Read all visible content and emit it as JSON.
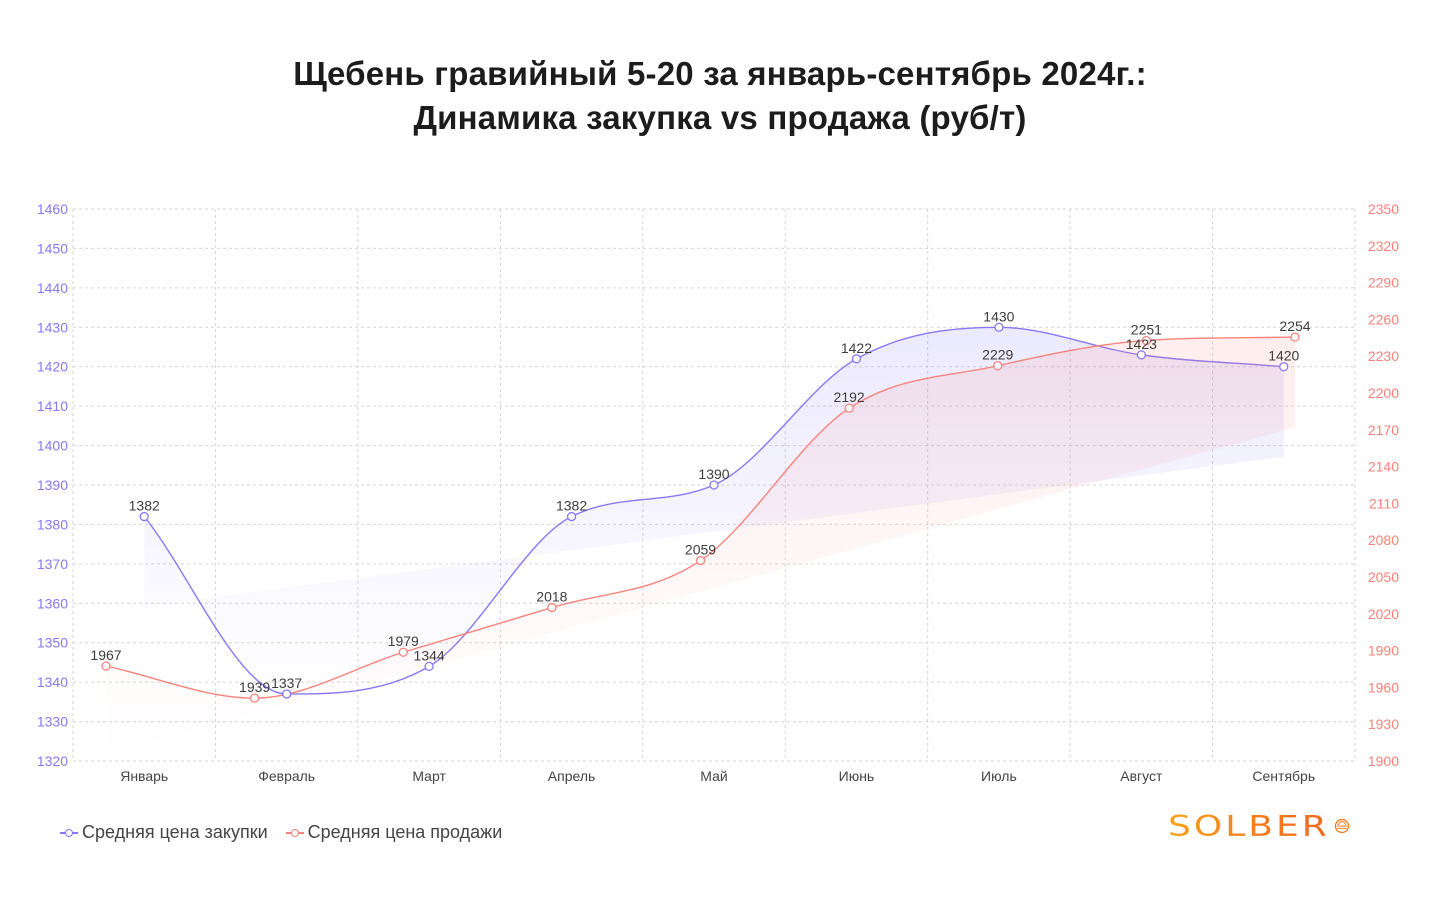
{
  "title": {
    "line1": "Щебень гравийный 5-20 за январь-сентябрь 2024г.:",
    "line2": "Динамика закупка vs продажа (руб/т)"
  },
  "legend": {
    "purchase": "Средняя цена закупки",
    "sale": "Средняя цена продажи"
  },
  "logo": {
    "text": "SOLBER"
  },
  "colors": {
    "purchase": "#8878f6",
    "sale": "#f9837b",
    "grid": "#d6d6d6",
    "left_axis_text": "#8878f6",
    "right_axis_text": "#f9837b",
    "label_text": "#3d3d3d",
    "logo": "#f47a1c"
  },
  "chart_data": {
    "type": "line",
    "title": "Щебень гравийный 5-20 за январь-сентябрь 2024г.: Динамика закупка vs продажа (руб/т)",
    "categories": [
      "Январь",
      "Февраль",
      "Март",
      "Апрель",
      "Май",
      "Июнь",
      "Июль",
      "Август",
      "Сентябрь"
    ],
    "series": [
      {
        "name": "Средняя цена закупки",
        "axis": "left",
        "color": "#8878f6",
        "values": [
          1382,
          1337,
          1344,
          1382,
          1390,
          1422,
          1430,
          1423,
          1420
        ]
      },
      {
        "name": "Средняя цена продажи",
        "axis": "right",
        "color": "#f9837b",
        "values": [
          1967,
          1939,
          1979,
          2018,
          2059,
          2192,
          2229,
          2251,
          2254
        ]
      }
    ],
    "y_left": {
      "ticks": [
        1460,
        1450,
        1440,
        1430,
        1420,
        1410,
        1400,
        1390,
        1380,
        1370,
        1360,
        1350,
        1340,
        1330,
        1320
      ],
      "ylim": [
        1320,
        1460
      ]
    },
    "y_right": {
      "ticks": [
        2350,
        2320,
        2290,
        2260,
        2230,
        2200,
        2170,
        2140,
        2110,
        2080,
        2050,
        2020,
        1990,
        1960,
        1930,
        1900
      ],
      "ylim": [
        1900,
        2350
      ]
    },
    "xlabel": "",
    "ylabel": "",
    "grid": true,
    "legend_position": "bottom-left",
    "data_labels": true,
    "smooth": true
  }
}
